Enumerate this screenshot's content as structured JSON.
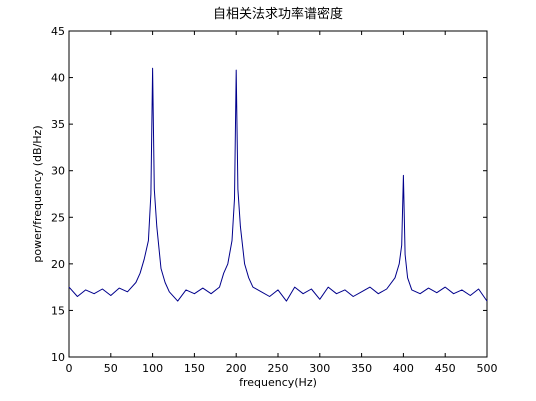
{
  "chart_data": {
    "type": "line",
    "title": "自相关法求功率谱密度",
    "xlabel": "frequency(Hz)",
    "ylabel": "power/frequency (dB/Hz)",
    "xlim": [
      0,
      500
    ],
    "ylim": [
      10,
      45
    ],
    "xticks": [
      0,
      50,
      100,
      150,
      200,
      250,
      300,
      350,
      400,
      450,
      500
    ],
    "yticks": [
      10,
      15,
      20,
      25,
      30,
      35,
      40,
      45
    ],
    "xtick_labels": [
      "0",
      "50",
      "100",
      "150",
      "200",
      "250",
      "300",
      "350",
      "400",
      "450",
      "500"
    ],
    "ytick_labels": [
      "10",
      "15",
      "20",
      "25",
      "30",
      "35",
      "40",
      "45"
    ],
    "grid": false,
    "line_color": "#00008b",
    "series": [
      {
        "x": [
          0,
          10,
          20,
          30,
          40,
          50,
          60,
          70,
          80,
          85,
          90,
          95,
          98,
          100,
          102,
          105,
          110,
          115,
          120,
          130,
          140,
          150,
          160,
          170,
          180,
          185,
          190,
          195,
          198,
          200,
          202,
          205,
          210,
          215,
          220,
          230,
          240,
          250,
          260,
          270,
          280,
          290,
          300,
          310,
          320,
          330,
          340,
          350,
          360,
          370,
          380,
          390,
          395,
          398,
          400,
          402,
          405,
          410,
          420,
          430,
          440,
          450,
          460,
          470,
          480,
          490,
          500
        ],
        "y": [
          17.5,
          16.5,
          17.2,
          16.8,
          17.3,
          16.6,
          17.4,
          17.0,
          18.0,
          19.0,
          20.5,
          22.5,
          27.5,
          41.0,
          28.0,
          24.0,
          19.5,
          18.0,
          17.0,
          16.0,
          17.2,
          16.8,
          17.4,
          16.8,
          17.5,
          19.0,
          20.0,
          22.5,
          27.0,
          40.8,
          28.0,
          24.0,
          20.0,
          18.5,
          17.5,
          17.0,
          16.5,
          17.2,
          16.0,
          17.5,
          16.8,
          17.3,
          16.2,
          17.5,
          16.8,
          17.2,
          16.5,
          17.0,
          17.5,
          16.8,
          17.3,
          18.5,
          20.0,
          22.0,
          29.5,
          21.0,
          18.5,
          17.2,
          16.8,
          17.4,
          16.9,
          17.5,
          16.8,
          17.2,
          16.6,
          17.3,
          16.0
        ]
      }
    ]
  }
}
